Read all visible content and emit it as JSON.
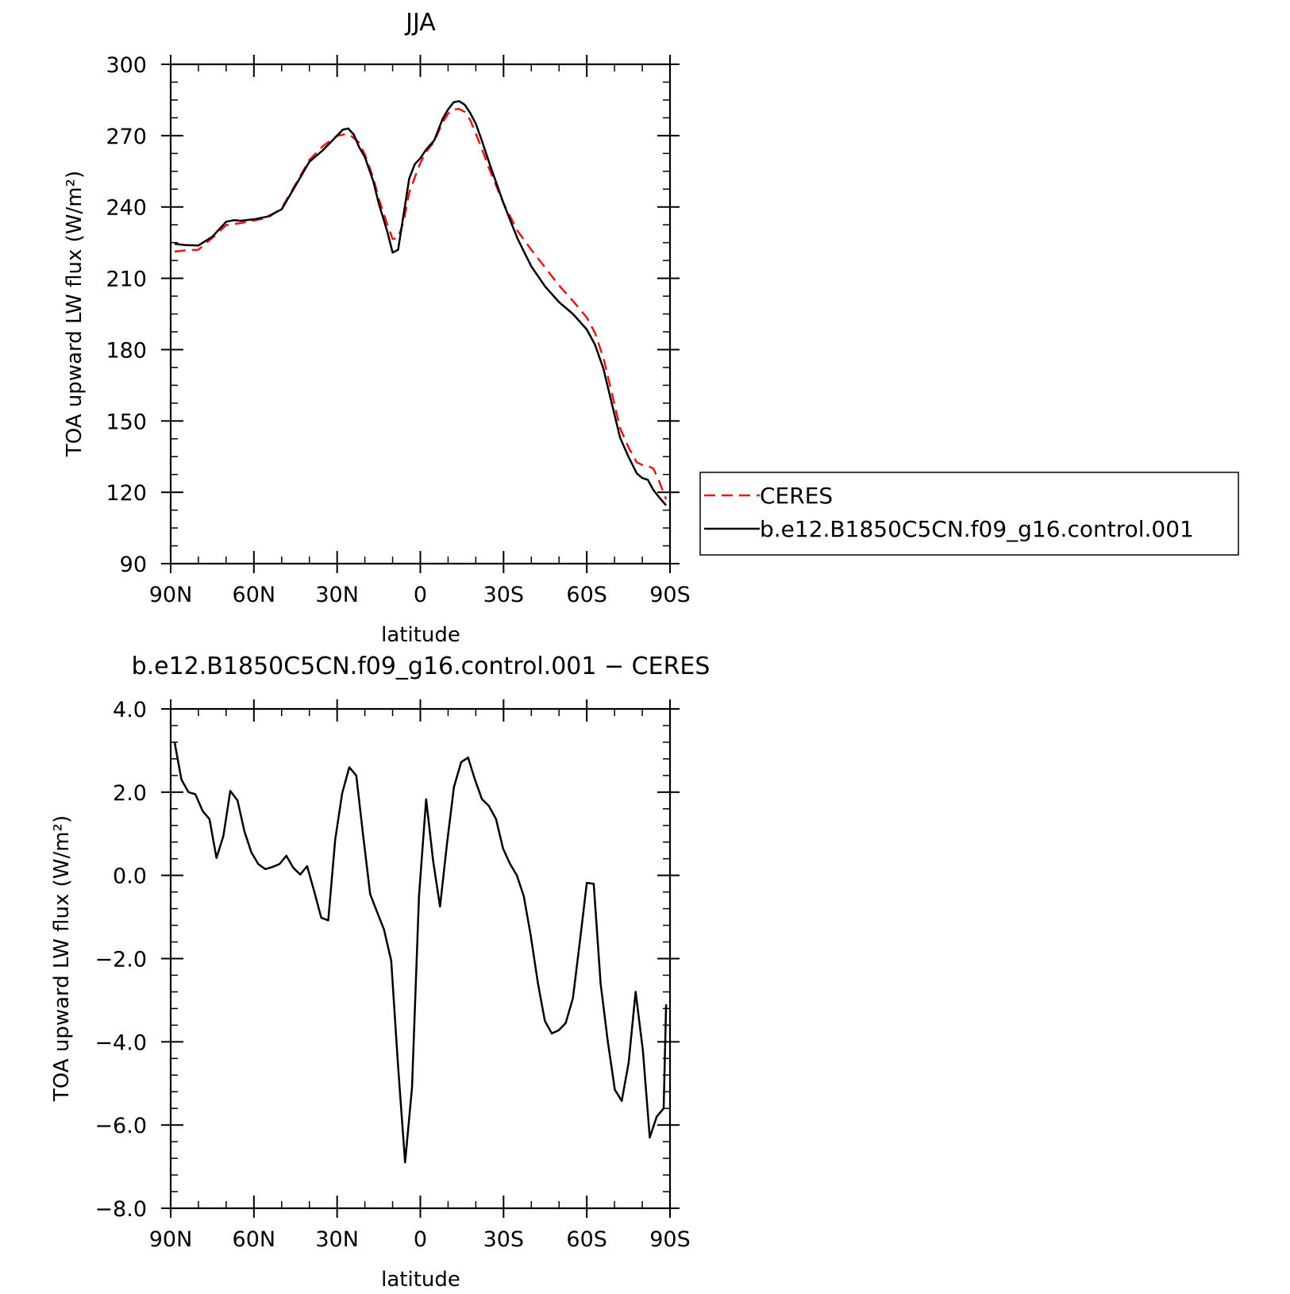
{
  "chart_data": [
    {
      "type": "line",
      "title": "JJA",
      "xlabel": "latitude",
      "ylabel": "TOA upward LW flux (W/m²)",
      "xlim": [
        90,
        -90
      ],
      "ylim": [
        90,
        300
      ],
      "xtick_labels": [
        "90N",
        "60N",
        "30N",
        "0",
        "30S",
        "60S",
        "90S"
      ],
      "xtick_values": [
        90,
        60,
        30,
        0,
        -30,
        -60,
        -90
      ],
      "ytick_values": [
        90,
        120,
        150,
        180,
        210,
        240,
        270,
        300
      ],
      "legend": "right",
      "series": [
        {
          "name": "CERES",
          "color": "#e8151b",
          "dash": true,
          "x": [
            88.6,
            85,
            80,
            75,
            70,
            65,
            60,
            55,
            50,
            45,
            40,
            35,
            30,
            27,
            25,
            22,
            20,
            17,
            15,
            12,
            10,
            8,
            6,
            4,
            2,
            0,
            -2,
            -5,
            -8,
            -10,
            -12,
            -14,
            -16,
            -18,
            -20,
            -22,
            -25,
            -30,
            -35,
            -40,
            -45,
            -50,
            -55,
            -60,
            -63,
            -66,
            -69,
            -72,
            -75,
            -78,
            -80,
            -82,
            -84,
            -86,
            -88.6
          ],
          "y": [
            221.2,
            221.7,
            222.0,
            227.0,
            232.4,
            233.2,
            234.3,
            235.5,
            239.5,
            249.5,
            259.8,
            265.7,
            270.0,
            270.6,
            270.0,
            267.0,
            262.0,
            252.5,
            243.5,
            233.0,
            226.5,
            227.0,
            234.0,
            246.0,
            252.4,
            258.5,
            263.0,
            267.5,
            275.5,
            279.2,
            281.0,
            281.2,
            280.0,
            276.5,
            270.8,
            265.0,
            255.5,
            241.5,
            230.0,
            222.0,
            214.5,
            207.0,
            200.5,
            193.5,
            187.0,
            176.5,
            162.0,
            147.0,
            139.0,
            132.6,
            131.5,
            131.1,
            130.0,
            125.0,
            117.0
          ]
        },
        {
          "name": "b.e12.B1850C5CN.f09_g16.control.001",
          "color": "#000000",
          "dash": false,
          "x": [
            88.6,
            85,
            80,
            75,
            70,
            67,
            65,
            60,
            55,
            50,
            45,
            40,
            35,
            30,
            28,
            26,
            24,
            22,
            20,
            17,
            15,
            12,
            10,
            8,
            6,
            4,
            2,
            0,
            -2,
            -5,
            -8,
            -10,
            -12,
            -14,
            -16,
            -18,
            -20,
            -22,
            -25,
            -30,
            -35,
            -40,
            -45,
            -50,
            -55,
            -60,
            -63,
            -66,
            -69,
            -72,
            -75,
            -78,
            -80,
            -82,
            -84,
            -86,
            -88.6
          ],
          "y": [
            224.5,
            224.0,
            223.8,
            227.5,
            233.8,
            234.5,
            234.2,
            234.8,
            236.0,
            239.0,
            249.0,
            259.0,
            264.0,
            270.0,
            272.5,
            273.0,
            270.5,
            265.0,
            261.0,
            251.0,
            241.5,
            230.0,
            220.8,
            222.0,
            237.0,
            252.0,
            258.0,
            260.5,
            264.0,
            268.0,
            277.0,
            281.0,
            284.0,
            284.5,
            283.0,
            279.5,
            275.0,
            268.5,
            258.0,
            241.5,
            226.8,
            215.0,
            206.5,
            200.0,
            195.0,
            188.5,
            182.0,
            172.0,
            157.5,
            143.0,
            135.0,
            128.0,
            126.0,
            125.3,
            121.0,
            118.0,
            114.5
          ]
        }
      ]
    },
    {
      "type": "line",
      "title": "b.e12.B1850C5CN.f09_g16.control.001 − CERES",
      "xlabel": "latitude",
      "ylabel": "TOA upward LW flux (W/m²)",
      "xlim": [
        90,
        -90
      ],
      "ylim": [
        -8.0,
        4.0
      ],
      "xtick_labels": [
        "90N",
        "60N",
        "30N",
        "0",
        "30S",
        "60S",
        "90S"
      ],
      "xtick_values": [
        90,
        60,
        30,
        0,
        -30,
        -60,
        -90
      ],
      "ytick_labels": [
        "−8.0",
        "−6.0",
        "−4.0",
        "−2.0",
        "0.0",
        "2.0",
        "4.0"
      ],
      "ytick_values": [
        -8.0,
        -6.0,
        -4.0,
        -2.0,
        0.0,
        2.0,
        4.0
      ],
      "series": [
        {
          "color": "#000000",
          "dash": false,
          "x": [
            88.6,
            86.1,
            83.6,
            81.1,
            78.5,
            76.0,
            73.5,
            71.0,
            68.5,
            65.9,
            63.4,
            60.9,
            58.4,
            55.9,
            53.4,
            50.8,
            48.3,
            45.8,
            43.3,
            40.8,
            38.2,
            35.7,
            33.2,
            30.7,
            28.2,
            25.6,
            23.1,
            20.6,
            18.1,
            15.6,
            13.1,
            10.5,
            8.0,
            5.5,
            3.0,
            0.5,
            -2.1,
            -4.6,
            -7.1,
            -9.6,
            -12.1,
            -14.7,
            -17.2,
            -19.7,
            -22.2,
            -24.7,
            -27.3,
            -29.8,
            -32.3,
            -34.8,
            -37.3,
            -39.8,
            -42.4,
            -44.9,
            -47.4,
            -49.9,
            -52.4,
            -55.0,
            -57.5,
            -60.0,
            -62.5,
            -65.0,
            -67.6,
            -70.1,
            -72.6,
            -75.1,
            -77.6,
            -80.2,
            -82.7,
            -85.2,
            -87.7,
            -88.6
          ],
          "y": [
            3.2,
            2.3,
            2.0,
            1.95,
            1.55,
            1.35,
            0.42,
            0.95,
            2.03,
            1.8,
            1.05,
            0.55,
            0.27,
            0.15,
            0.2,
            0.27,
            0.47,
            0.18,
            0.02,
            0.22,
            -0.4,
            -1.02,
            -1.08,
            0.85,
            1.97,
            2.6,
            2.4,
            0.95,
            -0.45,
            -0.88,
            -1.3,
            -2.05,
            -4.6,
            -6.9,
            -5.1,
            -0.5,
            1.83,
            0.35,
            -0.75,
            0.75,
            2.12,
            2.72,
            2.83,
            2.3,
            1.83,
            1.67,
            1.35,
            0.65,
            0.28,
            0.0,
            -0.5,
            -1.45,
            -2.6,
            -3.5,
            -3.8,
            -3.72,
            -3.55,
            -2.95,
            -1.6,
            -0.18,
            -0.2,
            -2.6,
            -4.0,
            -5.15,
            -5.42,
            -4.5,
            -2.8,
            -4.2,
            -6.3,
            -5.8,
            -5.6,
            -3.1
          ]
        }
      ]
    }
  ]
}
